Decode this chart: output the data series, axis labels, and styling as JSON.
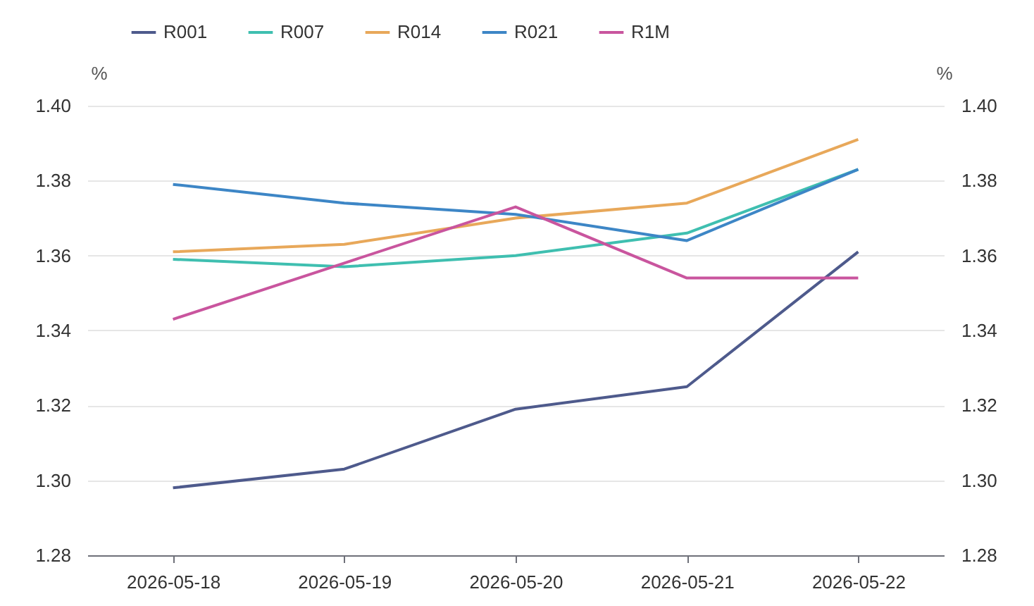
{
  "chart_data": {
    "type": "line",
    "categories": [
      "2026-05-18",
      "2026-05-19",
      "2026-05-20",
      "2026-05-21",
      "2026-05-22"
    ],
    "series": [
      {
        "name": "R001",
        "color": "#4e5a8c",
        "values": [
          1.298,
          1.303,
          1.319,
          1.325,
          1.361
        ]
      },
      {
        "name": "R007",
        "color": "#3fbfb0",
        "values": [
          1.359,
          1.357,
          1.36,
          1.366,
          1.383
        ]
      },
      {
        "name": "R014",
        "color": "#e8a85a",
        "values": [
          1.361,
          1.363,
          1.37,
          1.374,
          1.391
        ]
      },
      {
        "name": "R021",
        "color": "#3d86c6",
        "values": [
          1.379,
          1.374,
          1.371,
          1.364,
          1.383
        ]
      },
      {
        "name": "R1M",
        "color": "#c9559e",
        "values": [
          1.343,
          1.358,
          1.373,
          1.354,
          1.354
        ]
      }
    ],
    "ylabel": "%",
    "y2label": "%",
    "ylim": [
      1.28,
      1.4
    ],
    "yticks": [
      1.28,
      {
        "value": 1.3,
        "label": "1.30"
      },
      1.32,
      1.34,
      1.36,
      1.38,
      {
        "value": 1.4,
        "label": "1.40"
      }
    ],
    "y2lim": [
      1.28,
      1.4
    ],
    "y2ticks": [
      1.28,
      {
        "value": 1.3,
        "label": "1.30"
      },
      1.32,
      1.34,
      1.36,
      1.38,
      {
        "value": 1.4,
        "label": "1.40"
      }
    ],
    "grid": "y",
    "legend": "top left",
    "marker": "none",
    "line_style": "solid"
  }
}
